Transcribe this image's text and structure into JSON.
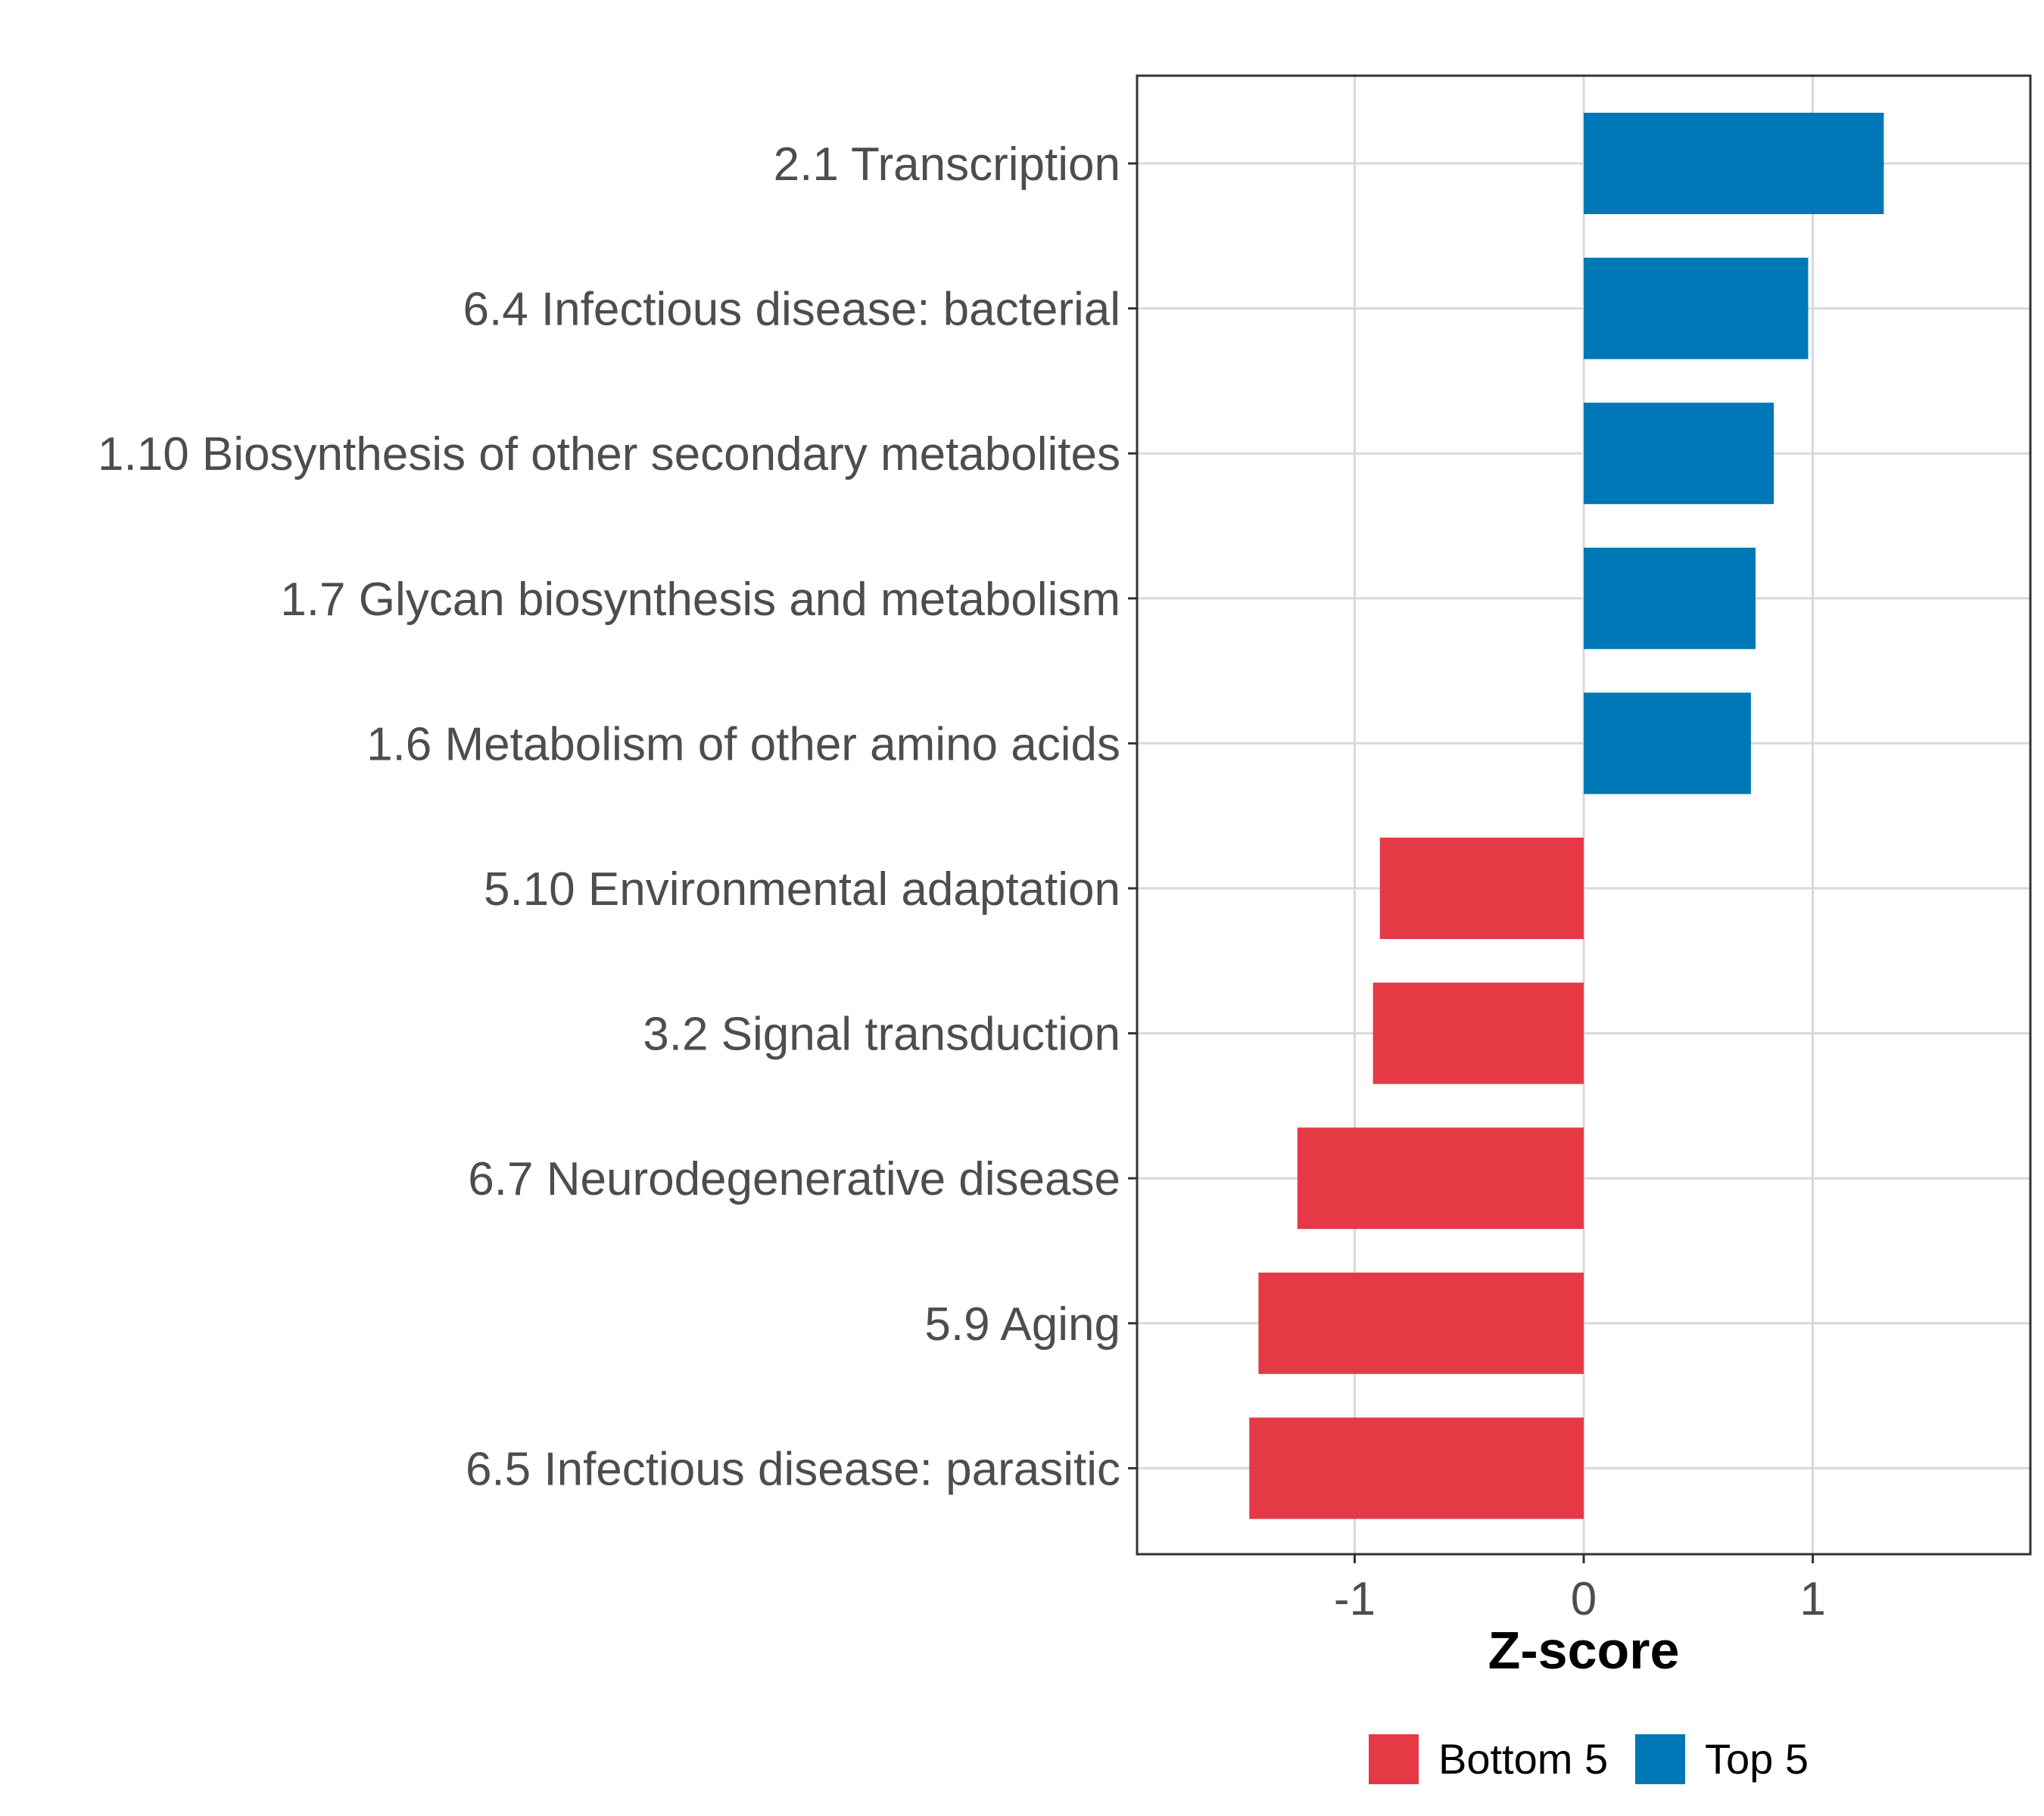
{
  "chart_data": {
    "type": "bar",
    "orientation": "horizontal",
    "xlabel": "Z-score",
    "ylabel": "",
    "xlim": [
      -1.95,
      1.95
    ],
    "xticks": [
      -1,
      0,
      1
    ],
    "xtick_labels": [
      "-1",
      "0",
      "1"
    ],
    "grid": true,
    "legend_position": "bottom",
    "categories": [
      "2.1 Transcription",
      "6.4 Infectious disease: bacterial",
      "1.10 Biosynthesis of other secondary metabolites",
      "1.7 Glycan biosynthesis and metabolism",
      "1.6 Metabolism of other amino acids",
      "5.10 Environmental adaptation",
      "3.2 Signal transduction",
      "6.7 Neurodegenerative disease",
      "5.9 Aging",
      "6.5 Infectious disease: parasitic"
    ],
    "values": [
      1.31,
      0.98,
      0.83,
      0.75,
      0.73,
      -0.89,
      -0.92,
      -1.25,
      -1.42,
      -1.46
    ],
    "groups": [
      "Top 5",
      "Top 5",
      "Top 5",
      "Top 5",
      "Top 5",
      "Bottom 5",
      "Bottom 5",
      "Bottom 5",
      "Bottom 5",
      "Bottom 5"
    ],
    "legend": [
      {
        "name": "Bottom 5",
        "color": "#e63946"
      },
      {
        "name": "Top 5",
        "color": "#0077b6"
      }
    ]
  }
}
